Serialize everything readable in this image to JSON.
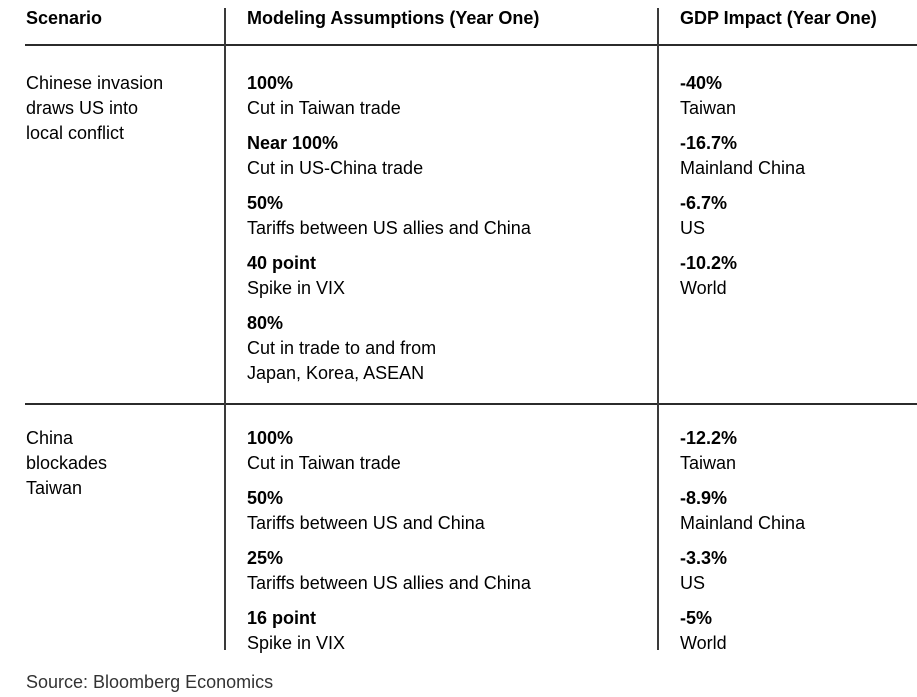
{
  "chart_data": {
    "type": "table",
    "columns": [
      "Scenario",
      "Modeling Assumptions (Year One)",
      "GDP Impact (Year One)"
    ],
    "rows": [
      {
        "scenario": "Chinese invasion draws US into local conflict",
        "scenario_lines": [
          "Chinese invasion",
          "draws US into",
          "local conflict"
        ],
        "assumptions": [
          {
            "value": "100%",
            "desc": "Cut in Taiwan trade"
          },
          {
            "value": "Near 100%",
            "desc": "Cut in US-China trade"
          },
          {
            "value": "50%",
            "desc": "Tariffs between US allies and China"
          },
          {
            "value": "40 point",
            "desc": "Spike in VIX"
          },
          {
            "value": "80%",
            "desc": "Cut in trade to and from",
            "desc2": "Japan, Korea, ASEAN"
          }
        ],
        "impacts": [
          {
            "value": "-40%",
            "value_num": -40,
            "region": "Taiwan"
          },
          {
            "value": "-16.7%",
            "value_num": -16.7,
            "region": "Mainland China"
          },
          {
            "value": "-6.7%",
            "value_num": -6.7,
            "region": "US"
          },
          {
            "value": "-10.2%",
            "value_num": -10.2,
            "region": "World"
          }
        ]
      },
      {
        "scenario": "China blockades Taiwan",
        "scenario_lines": [
          "China",
          "blockades",
          "Taiwan"
        ],
        "assumptions": [
          {
            "value": "100%",
            "desc": "Cut in Taiwan trade"
          },
          {
            "value": "50%",
            "desc": "Tariffs between US and China"
          },
          {
            "value": "25%",
            "desc": "Tariffs between US allies and China"
          },
          {
            "value": "16 point",
            "desc": "Spike in VIX"
          }
        ],
        "impacts": [
          {
            "value": "-12.2%",
            "value_num": -12.2,
            "region": "Taiwan"
          },
          {
            "value": "-8.9%",
            "value_num": -8.9,
            "region": "Mainland China"
          },
          {
            "value": "-3.3%",
            "value_num": -3.3,
            "region": "US"
          },
          {
            "value": "-5%",
            "value_num": -5,
            "region": "World"
          }
        ]
      }
    ],
    "source": "Source: Bloomberg Economics",
    "layout": {
      "grid": "off",
      "legend": "none"
    }
  },
  "colors": {
    "text": "#000000",
    "rule_line": "#2b2b2b",
    "divider_line": "#3a3a3a",
    "source_text": "#333333",
    "background": "#ffffff"
  }
}
